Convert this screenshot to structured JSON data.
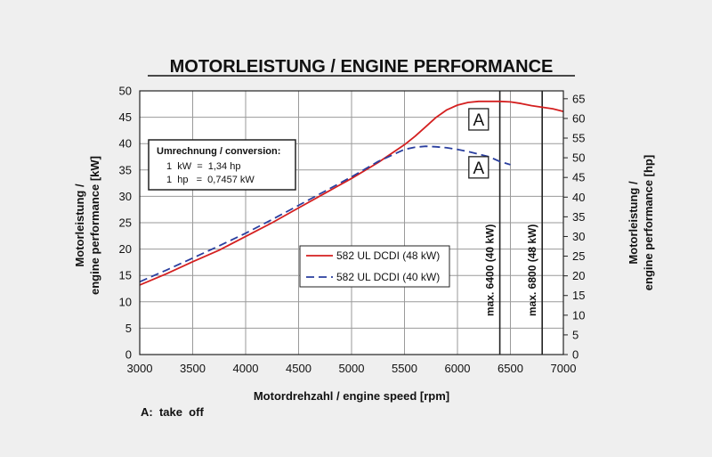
{
  "chart_data": {
    "type": "line",
    "title": "MOTORLEISTUNG / ENGINE PERFORMANCE",
    "xlabel": "Motordrehzahl / engine speed [rpm]",
    "ylabel_left": [
      "Motorleistung /",
      "engine performance [kW]"
    ],
    "ylabel_right": [
      "Motorleistung /",
      "engine performance [hp]"
    ],
    "xlim": [
      3000,
      7000
    ],
    "ylim_kw": [
      0,
      50
    ],
    "ylim_hp": [
      0,
      67
    ],
    "x_ticks": [
      3000,
      3500,
      4000,
      4500,
      5000,
      5500,
      6000,
      6500,
      7000
    ],
    "y_ticks_kw": [
      0,
      5,
      10,
      15,
      20,
      25,
      30,
      35,
      40,
      45,
      50
    ],
    "y_ticks_hp": [
      0,
      5,
      10,
      15,
      20,
      25,
      30,
      35,
      40,
      45,
      50,
      55,
      60,
      65
    ],
    "grid": true,
    "series": [
      {
        "name": "582 UL DCDI (48 kW)",
        "color": "#d42020",
        "style": "solid",
        "x": [
          3000,
          3250,
          3500,
          3750,
          4000,
          4250,
          4500,
          4750,
          5000,
          5250,
          5500,
          5600,
          5700,
          5800,
          5900,
          6000,
          6100,
          6200,
          6300,
          6400,
          6500,
          6600,
          6700,
          6800,
          6900,
          7000
        ],
        "values": [
          13.2,
          15.3,
          17.6,
          19.8,
          22.4,
          25.0,
          27.8,
          30.6,
          33.4,
          36.4,
          39.8,
          41.4,
          43.2,
          45.0,
          46.4,
          47.3,
          47.8,
          48.0,
          48.0,
          48.0,
          47.9,
          47.6,
          47.2,
          46.9,
          46.6,
          46.1
        ]
      },
      {
        "name": "582 UL DCDI (40 kW)",
        "color": "#2a3f9f",
        "style": "dashed",
        "x": [
          3000,
          3250,
          3500,
          3750,
          4000,
          4250,
          4500,
          4750,
          5000,
          5250,
          5500,
          5600,
          5700,
          5800,
          5900,
          6000,
          6100,
          6200,
          6300,
          6400,
          6500
        ],
        "values": [
          13.8,
          16.0,
          18.3,
          20.6,
          23.0,
          25.6,
          28.3,
          31.0,
          33.7,
          36.6,
          38.9,
          39.3,
          39.5,
          39.4,
          39.2,
          38.9,
          38.5,
          38.0,
          37.5,
          36.6,
          36.0
        ]
      }
    ],
    "vertical_markers": [
      {
        "x": 6400,
        "label": "max. 6400 (40 kW)"
      },
      {
        "x": 6800,
        "label": "max. 6800 (48 kW)"
      }
    ],
    "annotations": [
      {
        "text": "A",
        "x": 6200,
        "y": 44.6
      },
      {
        "text": "A",
        "x": 6200,
        "y": 35.5
      }
    ],
    "conversion_box": {
      "title": "Umrechnung / conversion:",
      "line1": "1  kW  =  1,34 hp",
      "line2": "1  hp   =  0,7457 kW"
    },
    "legend_placement": "center-right",
    "footnote": "A:  take  off"
  }
}
